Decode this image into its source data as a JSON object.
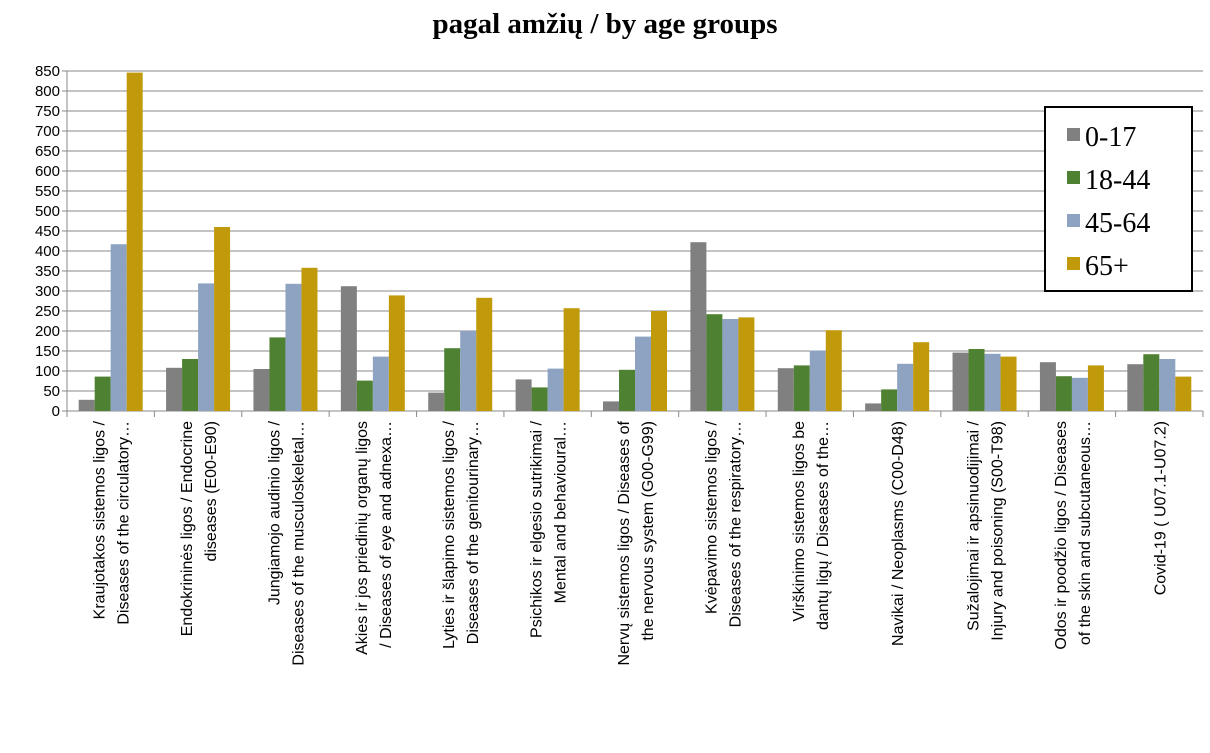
{
  "chart_data": {
    "type": "bar",
    "title": "pagal amžių / by age groups",
    "xlabel": "",
    "ylabel": "",
    "ylim": [
      0,
      850
    ],
    "yticks": [
      0,
      50,
      100,
      150,
      200,
      250,
      300,
      350,
      400,
      450,
      500,
      550,
      600,
      650,
      700,
      750,
      800,
      850
    ],
    "grid": true,
    "legend_position": "top-right",
    "categories": [
      [
        "Kraujotakos sistemos ligos /",
        "Diseases of the circulatory…"
      ],
      [
        "Endokrininės  ligos / Endocrine",
        "diseases (E00-E90)"
      ],
      [
        "Jungiamojo audinio ligos /",
        "Diseases of the musculoskeletal…"
      ],
      [
        "Akies ir jos priedinių organų ligos",
        "/ Diseases of eye and adnexa…"
      ],
      [
        "Lyties ir šlapimo sistemos ligos /",
        "Diseases of the genitourinary…"
      ],
      [
        "Psichikos ir elgesio sutrikimai /",
        "Mental and behavioural…"
      ],
      [
        "Nervų sistemos ligos / Diseases of",
        "the nervous system (G00-G99)"
      ],
      [
        "Kvėpavimo sistemos ligos /",
        "Diseases of the respiratory…"
      ],
      [
        "Virškinimo sistemos ligos be",
        "dantų ligų / Diseases of the…"
      ],
      [
        "Navikai / Neoplasms (C00-D48)"
      ],
      [
        "Sužalojimai ir apsinuodijimai /",
        "Injury and poisoning (S00-T98)"
      ],
      [
        "Odos ir poodžio ligos / Diseases",
        "of the skin and subcutaneous…"
      ],
      [
        "Covid-19 ( U07.1-U07.2)"
      ]
    ],
    "series": [
      {
        "name": "0-17",
        "color": "#808080",
        "values": [
          28,
          108,
          105,
          312,
          46,
          79,
          24,
          422,
          107,
          19,
          146,
          122,
          117
        ]
      },
      {
        "name": "18-44",
        "color": "#4f8132",
        "values": [
          86,
          130,
          184,
          76,
          157,
          59,
          103,
          242,
          114,
          54,
          155,
          87,
          142
        ]
      },
      {
        "name": "45-64",
        "color": "#8ea3c2",
        "values": [
          417,
          319,
          318,
          136,
          200,
          106,
          186,
          230,
          151,
          118,
          143,
          83,
          130
        ]
      },
      {
        "name": "65+",
        "color": "#c19a0b",
        "values": [
          846,
          460,
          358,
          289,
          283,
          257,
          250,
          234,
          202,
          172,
          136,
          114,
          86
        ]
      }
    ]
  }
}
